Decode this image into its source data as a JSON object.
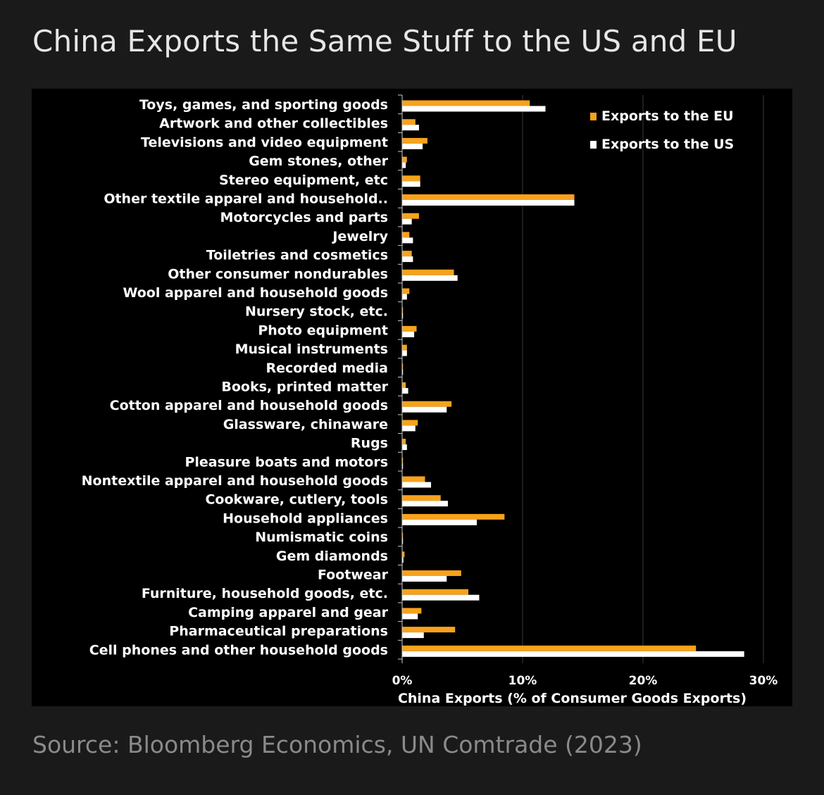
{
  "header": {
    "title": "China Exports the Same Stuff to the US and EU"
  },
  "footer": {
    "source": "Source: Bloomberg Economics, UN Comtrade (2023)"
  },
  "colors": {
    "background": "#1a1a1a",
    "plot_background": "#000000",
    "eu": "#f7a21b",
    "us": "#ffffff",
    "gridline": "#3a3a3a"
  },
  "chart_data": {
    "type": "bar",
    "orientation": "horizontal",
    "title": "",
    "xlabel": "China Exports (% of Consumer Goods Exports)",
    "ylabel": "",
    "xlim": [
      0,
      30
    ],
    "x_ticks": [
      "0%",
      "10%",
      "20%",
      "30%"
    ],
    "x_tick_values": [
      0,
      10,
      20,
      30
    ],
    "grid": "vertical",
    "legend": "top-right",
    "categories": [
      "Toys, games, and sporting goods",
      "Artwork and other collectibles",
      "Televisions and video equipment",
      "Gem stones, other",
      "Stereo equipment, etc",
      "Other textile apparel and household..",
      "Motorcycles and parts",
      "Jewelry",
      "Toiletries and cosmetics",
      "Other consumer nondurables",
      "Wool apparel and household goods",
      "Nursery stock, etc.",
      "Photo equipment",
      "Musical instruments",
      "Recorded media",
      "Books, printed matter",
      "Cotton apparel and household goods",
      "Glassware, chinaware",
      "Rugs",
      "Pleasure boats and motors",
      "Nontextile apparel and household goods",
      "Cookware, cutlery, tools",
      "Household appliances",
      "Numismatic coins",
      "Gem diamonds",
      "Footwear",
      "Furniture, household goods, etc.",
      "Camping apparel and gear",
      "Pharmaceutical preparations",
      "Cell phones and other household goods"
    ],
    "series": [
      {
        "name": "Exports to the EU",
        "color": "#f7a21b",
        "values": [
          10.6,
          1.1,
          2.1,
          0.4,
          1.5,
          14.3,
          1.4,
          0.6,
          0.8,
          4.3,
          0.6,
          0.05,
          1.2,
          0.4,
          0.05,
          0.3,
          4.1,
          1.3,
          0.3,
          0.05,
          1.9,
          3.2,
          8.5,
          0.05,
          0.2,
          4.9,
          5.5,
          1.6,
          4.4,
          24.4
        ]
      },
      {
        "name": "Exports to the US",
        "color": "#ffffff",
        "values": [
          11.9,
          1.4,
          1.7,
          0.3,
          1.5,
          14.3,
          0.8,
          0.9,
          0.9,
          4.6,
          0.4,
          0.05,
          1.0,
          0.4,
          0.05,
          0.5,
          3.7,
          1.1,
          0.4,
          0.05,
          2.4,
          3.8,
          6.2,
          0.05,
          0.1,
          3.7,
          6.4,
          1.3,
          1.8,
          28.4
        ]
      }
    ]
  }
}
